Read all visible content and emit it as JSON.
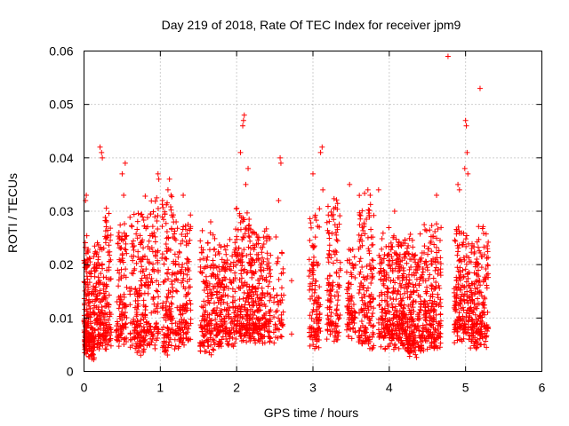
{
  "chart_data": {
    "type": "scatter",
    "title": "Day 219 of 2018, Rate Of TEC Index for receiver jpm9",
    "xlabel": "GPS time / hours",
    "ylabel": "ROTI / TECUs",
    "xlim": [
      0,
      6
    ],
    "ylim": [
      0,
      0.06
    ],
    "x_ticks": [
      0,
      1,
      2,
      3,
      4,
      5,
      6
    ],
    "y_ticks": [
      0,
      0.01,
      0.02,
      0.03,
      0.04,
      0.05,
      0.06
    ],
    "x_tick_labels": [
      "0",
      "1",
      "2",
      "3",
      "4",
      "5",
      "6"
    ],
    "y_tick_labels": [
      "0",
      "0.01",
      "0.02",
      "0.03",
      "0.04",
      "0.05",
      "0.06"
    ],
    "grid": true,
    "marker": "+",
    "color": "#ff0000",
    "series": [
      {
        "name": "ROTI",
        "clusters": [
          {
            "x0": 0.0,
            "x1": 0.06,
            "ymin": 0.005,
            "ymax": 0.024,
            "n": 110
          },
          {
            "x0": 0.06,
            "x1": 0.14,
            "ymin": 0.004,
            "ymax": 0.021,
            "n": 90
          },
          {
            "x0": 0.14,
            "x1": 0.22,
            "ymin": 0.006,
            "ymax": 0.024,
            "n": 90
          },
          {
            "x0": 0.22,
            "x1": 0.36,
            "ymin": 0.006,
            "ymax": 0.03,
            "n": 120
          },
          {
            "x0": 0.42,
            "x1": 0.56,
            "ymin": 0.006,
            "ymax": 0.028,
            "n": 110
          },
          {
            "x0": 0.6,
            "x1": 0.78,
            "ymin": 0.005,
            "ymax": 0.03,
            "n": 140
          },
          {
            "x0": 0.78,
            "x1": 0.98,
            "ymin": 0.006,
            "ymax": 0.032,
            "n": 150
          },
          {
            "x0": 1.02,
            "x1": 1.2,
            "ymin": 0.005,
            "ymax": 0.034,
            "n": 140
          },
          {
            "x0": 1.2,
            "x1": 1.4,
            "ymin": 0.006,
            "ymax": 0.028,
            "n": 140
          },
          {
            "x0": 1.52,
            "x1": 1.72,
            "ymin": 0.005,
            "ymax": 0.026,
            "n": 150
          },
          {
            "x0": 1.72,
            "x1": 1.98,
            "ymin": 0.006,
            "ymax": 0.024,
            "n": 190
          },
          {
            "x0": 1.98,
            "x1": 2.2,
            "ymin": 0.007,
            "ymax": 0.03,
            "n": 200
          },
          {
            "x0": 2.2,
            "x1": 2.45,
            "ymin": 0.007,
            "ymax": 0.026,
            "n": 210
          },
          {
            "x0": 2.48,
            "x1": 2.62,
            "ymin": 0.007,
            "ymax": 0.024,
            "n": 50
          },
          {
            "x0": 2.95,
            "x1": 3.1,
            "ymin": 0.006,
            "ymax": 0.03,
            "n": 120
          },
          {
            "x0": 3.18,
            "x1": 3.36,
            "ymin": 0.007,
            "ymax": 0.032,
            "n": 130
          },
          {
            "x0": 3.44,
            "x1": 3.56,
            "ymin": 0.008,
            "ymax": 0.022,
            "n": 80
          },
          {
            "x0": 3.6,
            "x1": 3.8,
            "ymin": 0.006,
            "ymax": 0.032,
            "n": 160
          },
          {
            "x0": 3.86,
            "x1": 4.0,
            "ymin": 0.006,
            "ymax": 0.026,
            "n": 110
          },
          {
            "x0": 4.0,
            "x1": 4.22,
            "ymin": 0.006,
            "ymax": 0.025,
            "n": 200
          },
          {
            "x0": 4.22,
            "x1": 4.45,
            "ymin": 0.004,
            "ymax": 0.024,
            "n": 210
          },
          {
            "x0": 4.45,
            "x1": 4.68,
            "ymin": 0.006,
            "ymax": 0.028,
            "n": 190
          },
          {
            "x0": 4.85,
            "x1": 5.05,
            "ymin": 0.007,
            "ymax": 0.026,
            "n": 170
          },
          {
            "x0": 5.05,
            "x1": 5.3,
            "ymin": 0.006,
            "ymax": 0.026,
            "n": 200
          }
        ],
        "peaks": [
          {
            "x": 0.02,
            "y": 0.032
          },
          {
            "x": 0.03,
            "y": 0.033
          },
          {
            "x": 0.09,
            "y": 0.003
          },
          {
            "x": 0.21,
            "y": 0.042
          },
          {
            "x": 0.23,
            "y": 0.041
          },
          {
            "x": 0.24,
            "y": 0.04
          },
          {
            "x": 0.5,
            "y": 0.037
          },
          {
            "x": 0.54,
            "y": 0.039
          },
          {
            "x": 0.52,
            "y": 0.033
          },
          {
            "x": 0.97,
            "y": 0.037
          },
          {
            "x": 0.98,
            "y": 0.036
          },
          {
            "x": 1.12,
            "y": 0.036
          },
          {
            "x": 1.1,
            "y": 0.034
          },
          {
            "x": 1.14,
            "y": 0.033
          },
          {
            "x": 1.3,
            "y": 0.033
          },
          {
            "x": 1.66,
            "y": 0.028
          },
          {
            "x": 2.05,
            "y": 0.041
          },
          {
            "x": 2.08,
            "y": 0.046
          },
          {
            "x": 2.09,
            "y": 0.047
          },
          {
            "x": 2.1,
            "y": 0.048
          },
          {
            "x": 2.15,
            "y": 0.038
          },
          {
            "x": 2.12,
            "y": 0.035
          },
          {
            "x": 2.57,
            "y": 0.04
          },
          {
            "x": 2.58,
            "y": 0.039
          },
          {
            "x": 2.72,
            "y": 0.017
          },
          {
            "x": 2.72,
            "y": 0.007
          },
          {
            "x": 2.55,
            "y": 0.032
          },
          {
            "x": 3.0,
            "y": 0.037
          },
          {
            "x": 3.1,
            "y": 0.041
          },
          {
            "x": 3.12,
            "y": 0.042
          },
          {
            "x": 3.13,
            "y": 0.034
          },
          {
            "x": 3.48,
            "y": 0.035
          },
          {
            "x": 3.72,
            "y": 0.034
          },
          {
            "x": 3.75,
            "y": 0.033
          },
          {
            "x": 3.86,
            "y": 0.034
          },
          {
            "x": 4.07,
            "y": 0.03
          },
          {
            "x": 4.62,
            "y": 0.033
          },
          {
            "x": 4.77,
            "y": 0.059
          },
          {
            "x": 4.9,
            "y": 0.035
          },
          {
            "x": 4.92,
            "y": 0.034
          },
          {
            "x": 4.99,
            "y": 0.038
          },
          {
            "x": 5.0,
            "y": 0.047
          },
          {
            "x": 5.01,
            "y": 0.046
          },
          {
            "x": 5.02,
            "y": 0.041
          },
          {
            "x": 5.03,
            "y": 0.037
          },
          {
            "x": 5.19,
            "y": 0.053
          }
        ]
      }
    ]
  }
}
